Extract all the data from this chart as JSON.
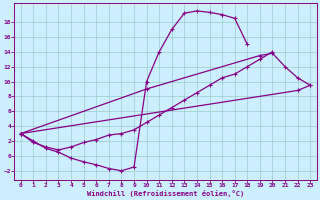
{
  "xlabel": "Windchill (Refroidissement éolien,°C)",
  "bg_color": "#cceeff",
  "line_color": "#880088",
  "grid_color": "#99cccc",
  "xlim": [
    -0.5,
    23.5
  ],
  "ylim": [
    -3.2,
    20.5
  ],
  "xticks": [
    0,
    1,
    2,
    3,
    4,
    5,
    6,
    7,
    8,
    9,
    10,
    11,
    12,
    13,
    14,
    15,
    16,
    17,
    18,
    19,
    20,
    21,
    22,
    23
  ],
  "yticks": [
    -2,
    0,
    2,
    4,
    6,
    8,
    10,
    12,
    14,
    16,
    18
  ],
  "line1_x": [
    0,
    1,
    2,
    3,
    4,
    5,
    6,
    7,
    8,
    9,
    10,
    11,
    12,
    13,
    14,
    15,
    16,
    17,
    18
  ],
  "line1_y": [
    3,
    2,
    1,
    0.5,
    -0.3,
    -0.8,
    -1.2,
    -1.7,
    -2.0,
    -1.5,
    10,
    14,
    17,
    19.2,
    19.5,
    19.3,
    19,
    18.5,
    15
  ],
  "line2_x": [
    0,
    1,
    2,
    3,
    4,
    5,
    6,
    7,
    8,
    9,
    10,
    11,
    12,
    13,
    14,
    15,
    16,
    17,
    18,
    19,
    20
  ],
  "line2_y": [
    3,
    1.8,
    1.2,
    0.8,
    1.2,
    1.8,
    2.2,
    2.8,
    3,
    3.5,
    4.5,
    5.5,
    6.5,
    7.5,
    8.5,
    9.5,
    10.5,
    11,
    12,
    13,
    14
  ],
  "line3_x": [
    0,
    10,
    19,
    20,
    21,
    22,
    23
  ],
  "line3_y": [
    3,
    9,
    13.5,
    13.8,
    12,
    10.5,
    9.5
  ],
  "line4_x": [
    0,
    22,
    23
  ],
  "line4_y": [
    3,
    8.8,
    9.5
  ]
}
